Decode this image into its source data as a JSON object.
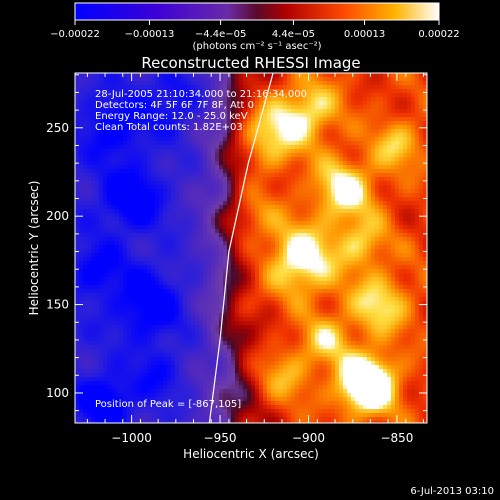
{
  "chart_data": {
    "type": "heatmap",
    "title": "Reconstructed RHESSI Image",
    "xlabel": "Heliocentric X (arcsec)",
    "ylabel": "Heliocentric Y (arcsec)",
    "xlim": [
      -1032,
      -833
    ],
    "ylim": [
      83,
      281
    ],
    "x_ticks": [
      -1000,
      -950,
      -900,
      -850
    ],
    "x_tick_labels": [
      "−1000",
      "−950",
      "−900",
      "−850"
    ],
    "y_ticks": [
      100,
      150,
      200,
      250
    ],
    "y_tick_labels": [
      "100",
      "150",
      "200",
      "250"
    ],
    "colorbar": {
      "min": -0.00022,
      "max": 0.00022,
      "ticks": [
        -0.00022,
        -0.00013,
        -4.4e-05,
        4.4e-05,
        0.00013,
        0.00022
      ],
      "tick_labels": [
        "−0.00022",
        "−0.00013",
        "−4.4e−05",
        "4.4e−05",
        "0.00013",
        "0.00022"
      ],
      "units": "(photons cm⁻² s⁻¹ asec⁻²)"
    },
    "annotations": [
      "28-Jul-2005 21:10:34.000 to 21:16:34.000",
      "Detectors: 4F 5F 6F 7F 8F, Att 0",
      "Energy Range: 12.0 - 25.0 keV",
      "Clean    Total counts: 1.82E+03"
    ],
    "peak_label": "Position of Peak = [-867,105]",
    "peak_position": [
      -867,
      105
    ],
    "limb_points": [
      [
        -956,
        83
      ],
      [
        -950,
        130
      ],
      [
        -945,
        180
      ],
      [
        -934,
        230
      ],
      [
        -920,
        281
      ]
    ],
    "grid": false
  },
  "footer": {
    "timestamp": "6-Jul-2013 03:10"
  }
}
